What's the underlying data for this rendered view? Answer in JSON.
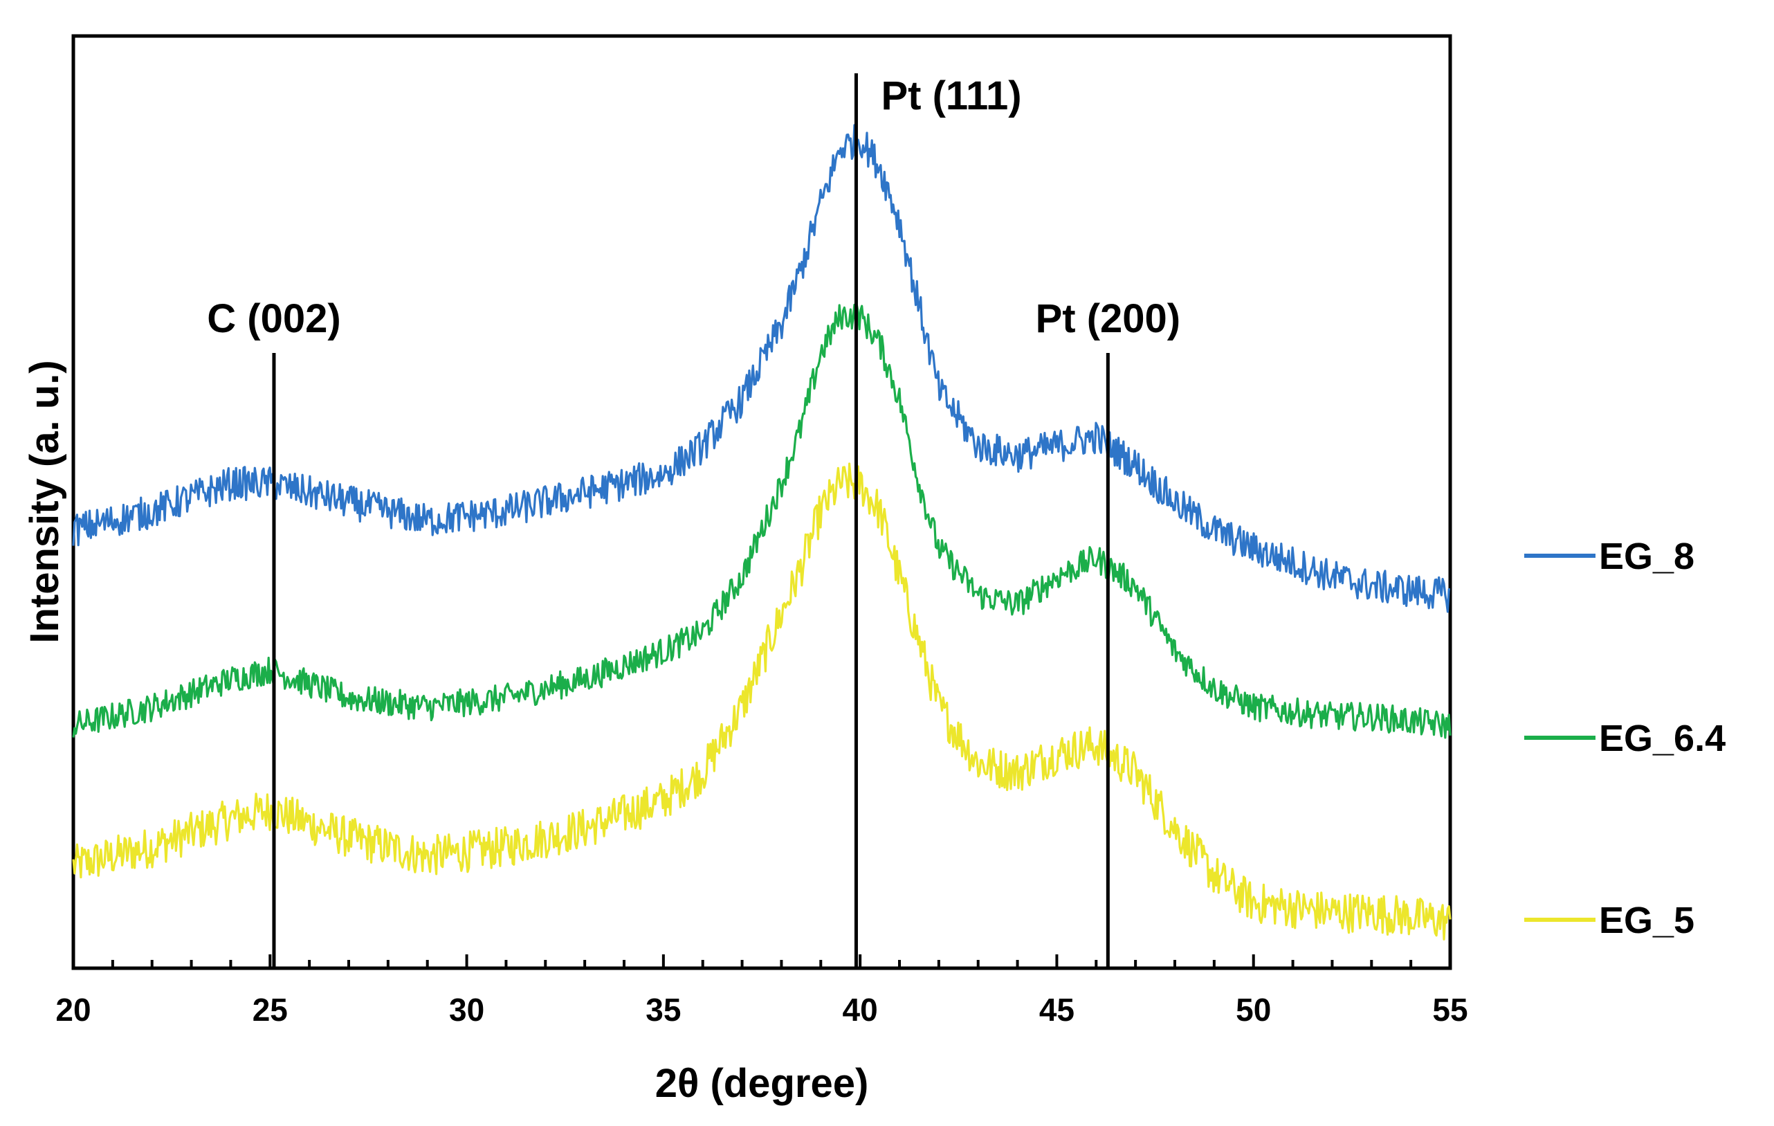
{
  "chart_data": {
    "type": "line",
    "title": "",
    "xlabel": "2θ (degree)",
    "ylabel": "Intensity (a. u.)",
    "xlim": [
      20,
      55
    ],
    "ylim": [
      0,
      1
    ],
    "x_ticks": [
      20,
      25,
      30,
      35,
      40,
      45,
      50,
      55
    ],
    "x_ticks_labels": [
      "20",
      "25",
      "30",
      "35",
      "40",
      "45",
      "50",
      "55"
    ],
    "y_ticks": [],
    "grid": false,
    "legend_position": "right",
    "annotations": [
      {
        "label": "C (002)",
        "x": 25.1,
        "top": 0.66
      },
      {
        "label": "Pt (111)",
        "x": 39.9,
        "top": 0.96
      },
      {
        "label": "Pt (200)",
        "x": 46.3,
        "top": 0.66
      }
    ],
    "series": [
      {
        "name": "EG_8",
        "color": "#2E75C8",
        "noise": 0.018,
        "x": [
          20,
          22,
          24,
          25,
          27,
          29,
          31,
          33,
          35,
          36,
          37,
          38,
          38.5,
          39,
          39.5,
          40,
          40.5,
          41,
          41.5,
          42,
          43,
          44,
          45,
          46,
          47,
          48,
          49,
          50,
          52,
          53,
          55
        ],
        "values": [
          0.47,
          0.49,
          0.52,
          0.52,
          0.5,
          0.48,
          0.49,
          0.51,
          0.53,
          0.56,
          0.61,
          0.69,
          0.75,
          0.82,
          0.88,
          0.89,
          0.86,
          0.8,
          0.71,
          0.62,
          0.56,
          0.55,
          0.56,
          0.57,
          0.54,
          0.5,
          0.47,
          0.45,
          0.42,
          0.41,
          0.4
        ]
      },
      {
        "name": "EG_6.4",
        "color": "#1BAE4A",
        "noise": 0.015,
        "x": [
          20,
          22,
          24,
          25,
          27,
          29,
          31,
          33,
          35,
          36,
          37,
          38,
          38.5,
          39,
          39.5,
          40,
          40.5,
          41,
          41.5,
          42,
          43,
          44,
          45,
          46,
          47,
          48,
          49,
          50,
          52,
          53,
          55
        ],
        "values": [
          0.26,
          0.28,
          0.31,
          0.32,
          0.29,
          0.28,
          0.29,
          0.31,
          0.34,
          0.36,
          0.42,
          0.52,
          0.58,
          0.66,
          0.7,
          0.7,
          0.67,
          0.61,
          0.52,
          0.45,
          0.4,
          0.39,
          0.42,
          0.44,
          0.41,
          0.34,
          0.3,
          0.28,
          0.27,
          0.27,
          0.26
        ]
      },
      {
        "name": "EG_5",
        "color": "#ECE62C",
        "noise": 0.022,
        "x": [
          20,
          22,
          24,
          25,
          27,
          29,
          31,
          33,
          35,
          36,
          37,
          38,
          38.5,
          39,
          39.5,
          40,
          40.5,
          41,
          41.5,
          42,
          43,
          44,
          45,
          46,
          47,
          48,
          49,
          50,
          52,
          53,
          55
        ],
        "values": [
          0.11,
          0.13,
          0.16,
          0.17,
          0.14,
          0.12,
          0.13,
          0.15,
          0.18,
          0.21,
          0.28,
          0.38,
          0.43,
          0.49,
          0.52,
          0.52,
          0.49,
          0.42,
          0.35,
          0.28,
          0.22,
          0.21,
          0.23,
          0.24,
          0.21,
          0.15,
          0.1,
          0.07,
          0.06,
          0.06,
          0.05
        ]
      }
    ]
  }
}
